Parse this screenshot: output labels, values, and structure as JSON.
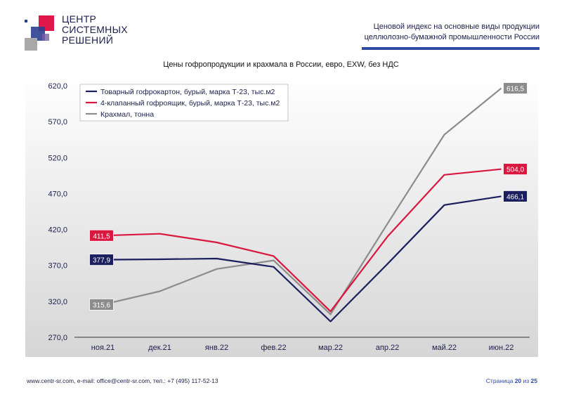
{
  "logo": {
    "line1": "ЦЕНТР",
    "line2": "СИСТЕМНЫХ",
    "line3": "РЕШЕНИЙ"
  },
  "header": {
    "line1": "Ценовой индекс на основные виды продукции",
    "line2": "целлюлозно-бумажной промышленности России"
  },
  "chart_data": {
    "type": "line",
    "title": "Цены гофропродукции и крахмала в России, евро, EXW, без НДС",
    "categories": [
      "ноя.21",
      "дек.21",
      "янв.22",
      "фев.22",
      "мар.22",
      "апр.22",
      "май.22",
      "июн.22"
    ],
    "ylim": [
      270,
      620
    ],
    "yticks": [
      "270,0",
      "320,0",
      "370,0",
      "420,0",
      "470,0",
      "520,0",
      "570,0",
      "620,0"
    ],
    "ytick_values": [
      270,
      320,
      370,
      420,
      470,
      520,
      570,
      620
    ],
    "grid": false,
    "legend_position": "top-left",
    "series": [
      {
        "name": "Товарный гофрокартон, бурый, марка Т-23, тыс.м2",
        "color": "#1b1f5e",
        "values": [
          377.9,
          378.5,
          379.5,
          368,
          292,
          372,
          454,
          466.1
        ],
        "first_label": "377,9",
        "last_label": "466,1"
      },
      {
        "name": "4-клапанный гофроящик, бурый, марка Т-23, тыс.м2",
        "color": "#d9173f",
        "values": [
          411.5,
          414,
          402,
          383,
          306,
          410,
          496,
          504.0
        ],
        "first_label": "411,5",
        "last_label": "504,0"
      },
      {
        "name": "Крахмал, тонна",
        "color": "#8c8c8c",
        "values": [
          315.6,
          334,
          365,
          377,
          302,
          428,
          552,
          616.5
        ],
        "first_label": "315,6",
        "last_label": "616,5"
      }
    ]
  },
  "footer": {
    "contacts": "www.centr-sr.com, e-mail: office@centr-sr.com, тел.: +7 (495) 117-52-13",
    "page_prefix": "Страница ",
    "page_number": "20",
    "page_middle": " из ",
    "page_total": "25"
  },
  "colors": {
    "accent_blue": "#2f4aa3",
    "logo_red": "#e0184a",
    "logo_navy": "#2b3f8f",
    "logo_gray": "#a8a8a8"
  }
}
